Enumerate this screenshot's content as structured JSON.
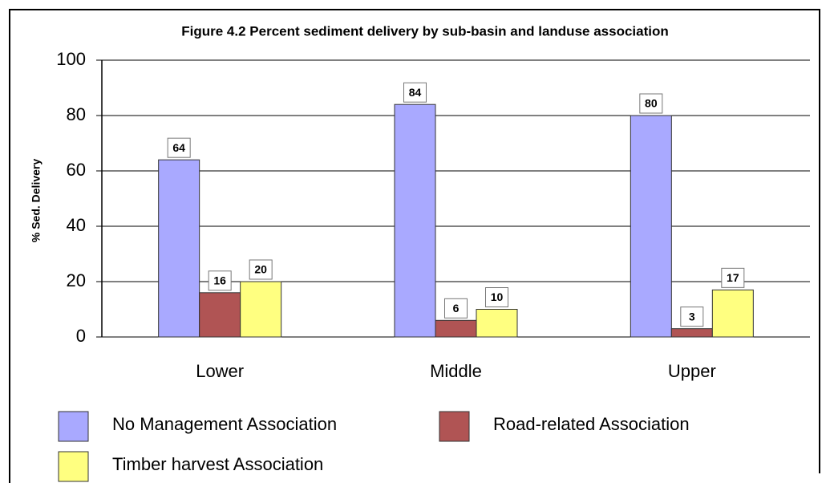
{
  "chart_data": {
    "type": "bar",
    "title": "Figure 4.2  Percent sediment delivery by sub-basin and landuse association",
    "y_label": "% Sed. Delivery",
    "categories": [
      "Lower",
      "Middle",
      "Upper"
    ],
    "series": [
      {
        "name": "No Management Association",
        "color": "#a9a9ff",
        "values": [
          64,
          84,
          80
        ]
      },
      {
        "name": "Road-related Association",
        "color": "#b05454",
        "values": [
          16,
          6,
          3
        ]
      },
      {
        "name": "Timber harvest Association",
        "color": "#ffff80",
        "values": [
          20,
          10,
          17
        ]
      }
    ],
    "ylim": [
      0,
      100
    ],
    "yticks": [
      0,
      20,
      40,
      60,
      80,
      100
    ],
    "grid": true,
    "legend": "bottom"
  }
}
